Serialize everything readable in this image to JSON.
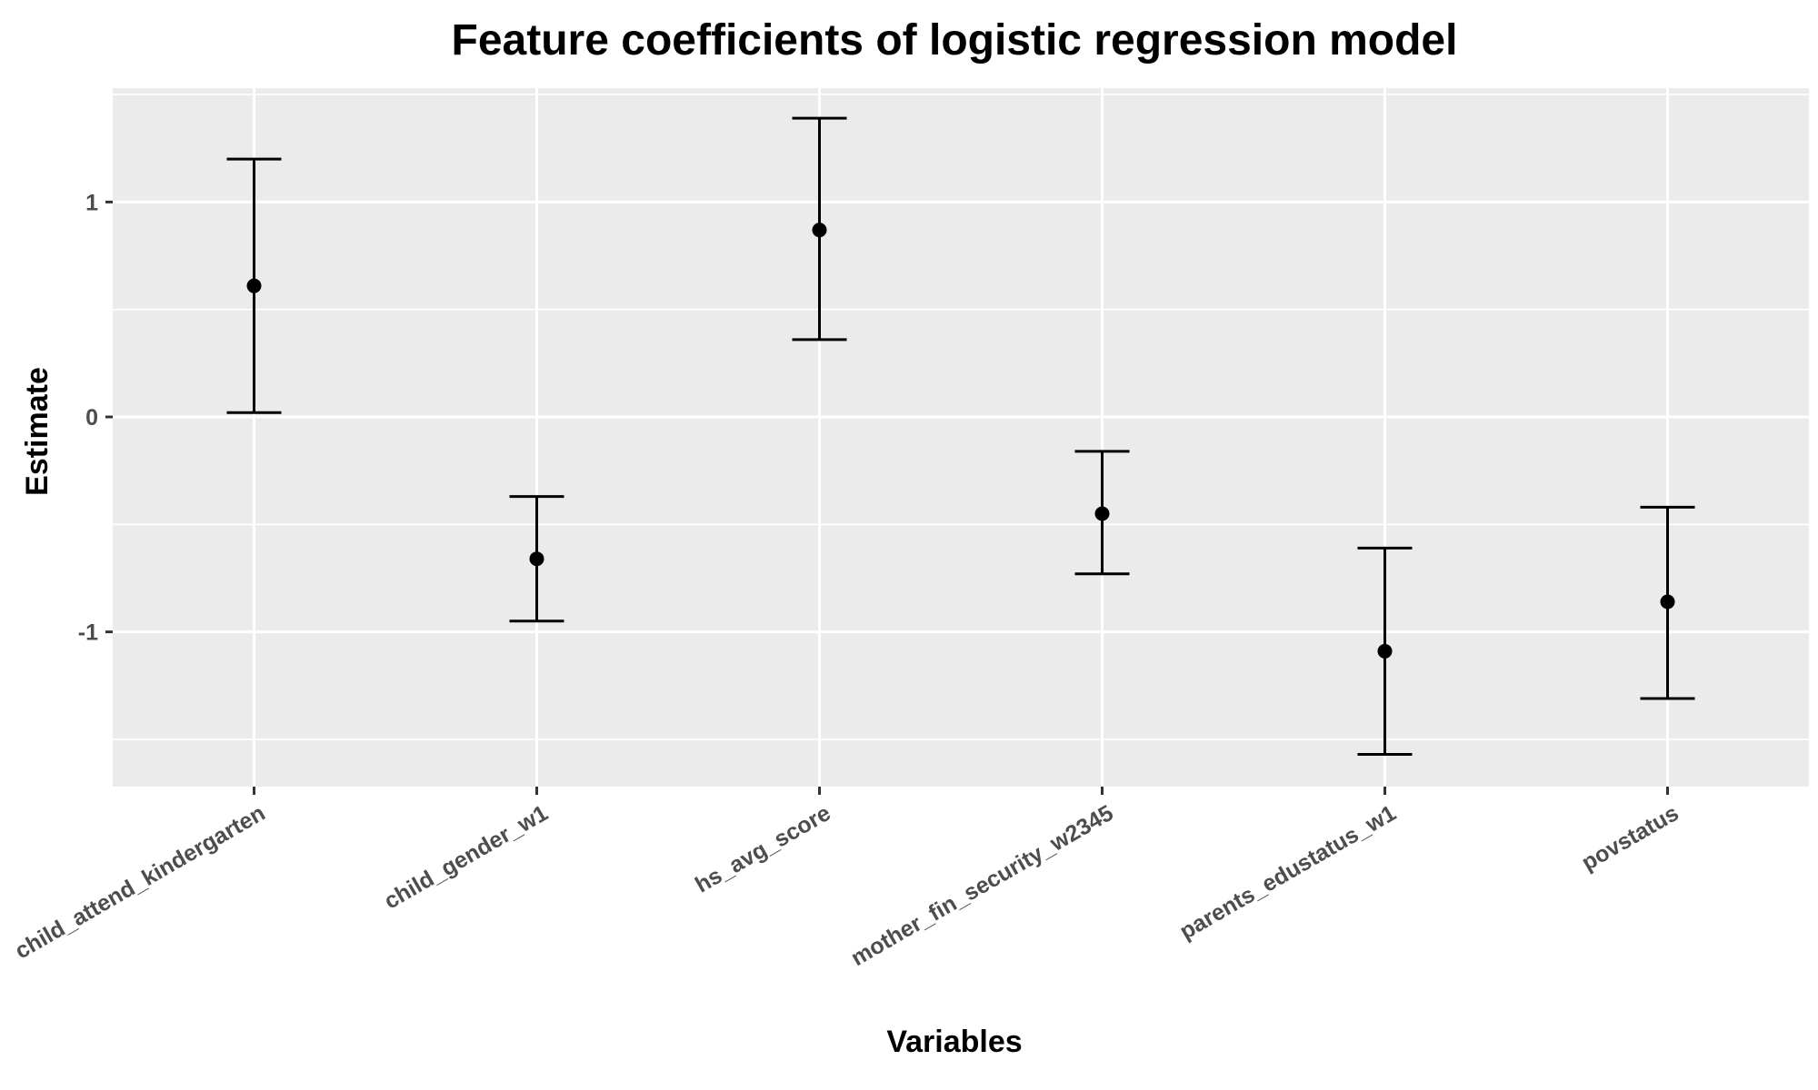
{
  "chart_data": {
    "type": "errorbar",
    "title": "Feature coefficients of logistic regression model",
    "xlabel": "Variables",
    "ylabel": "Estimate",
    "categories": [
      "child_attend_kindergarten",
      "child_gender_w1",
      "hs_avg_score",
      "mother_fin_security_w2345",
      "parents_edustatus_w1",
      "povstatus"
    ],
    "estimates": [
      0.61,
      -0.66,
      0.87,
      -0.45,
      -1.09,
      -0.86
    ],
    "lower": [
      0.02,
      -0.95,
      0.36,
      -0.73,
      -1.57,
      -1.31
    ],
    "upper": [
      1.2,
      -0.37,
      1.39,
      -0.16,
      -0.61,
      -0.42
    ],
    "ylim": [
      -1.72,
      1.53
    ],
    "yticks": [
      -1,
      0,
      1
    ],
    "ytick_labels": [
      "-1",
      "0",
      "1"
    ],
    "grid": true,
    "legend": "none",
    "colors": {
      "panel_background": "#ebebeb",
      "grid_line": "#ffffff",
      "marker": "#000000",
      "tick_text": "#4d4d4d"
    }
  }
}
